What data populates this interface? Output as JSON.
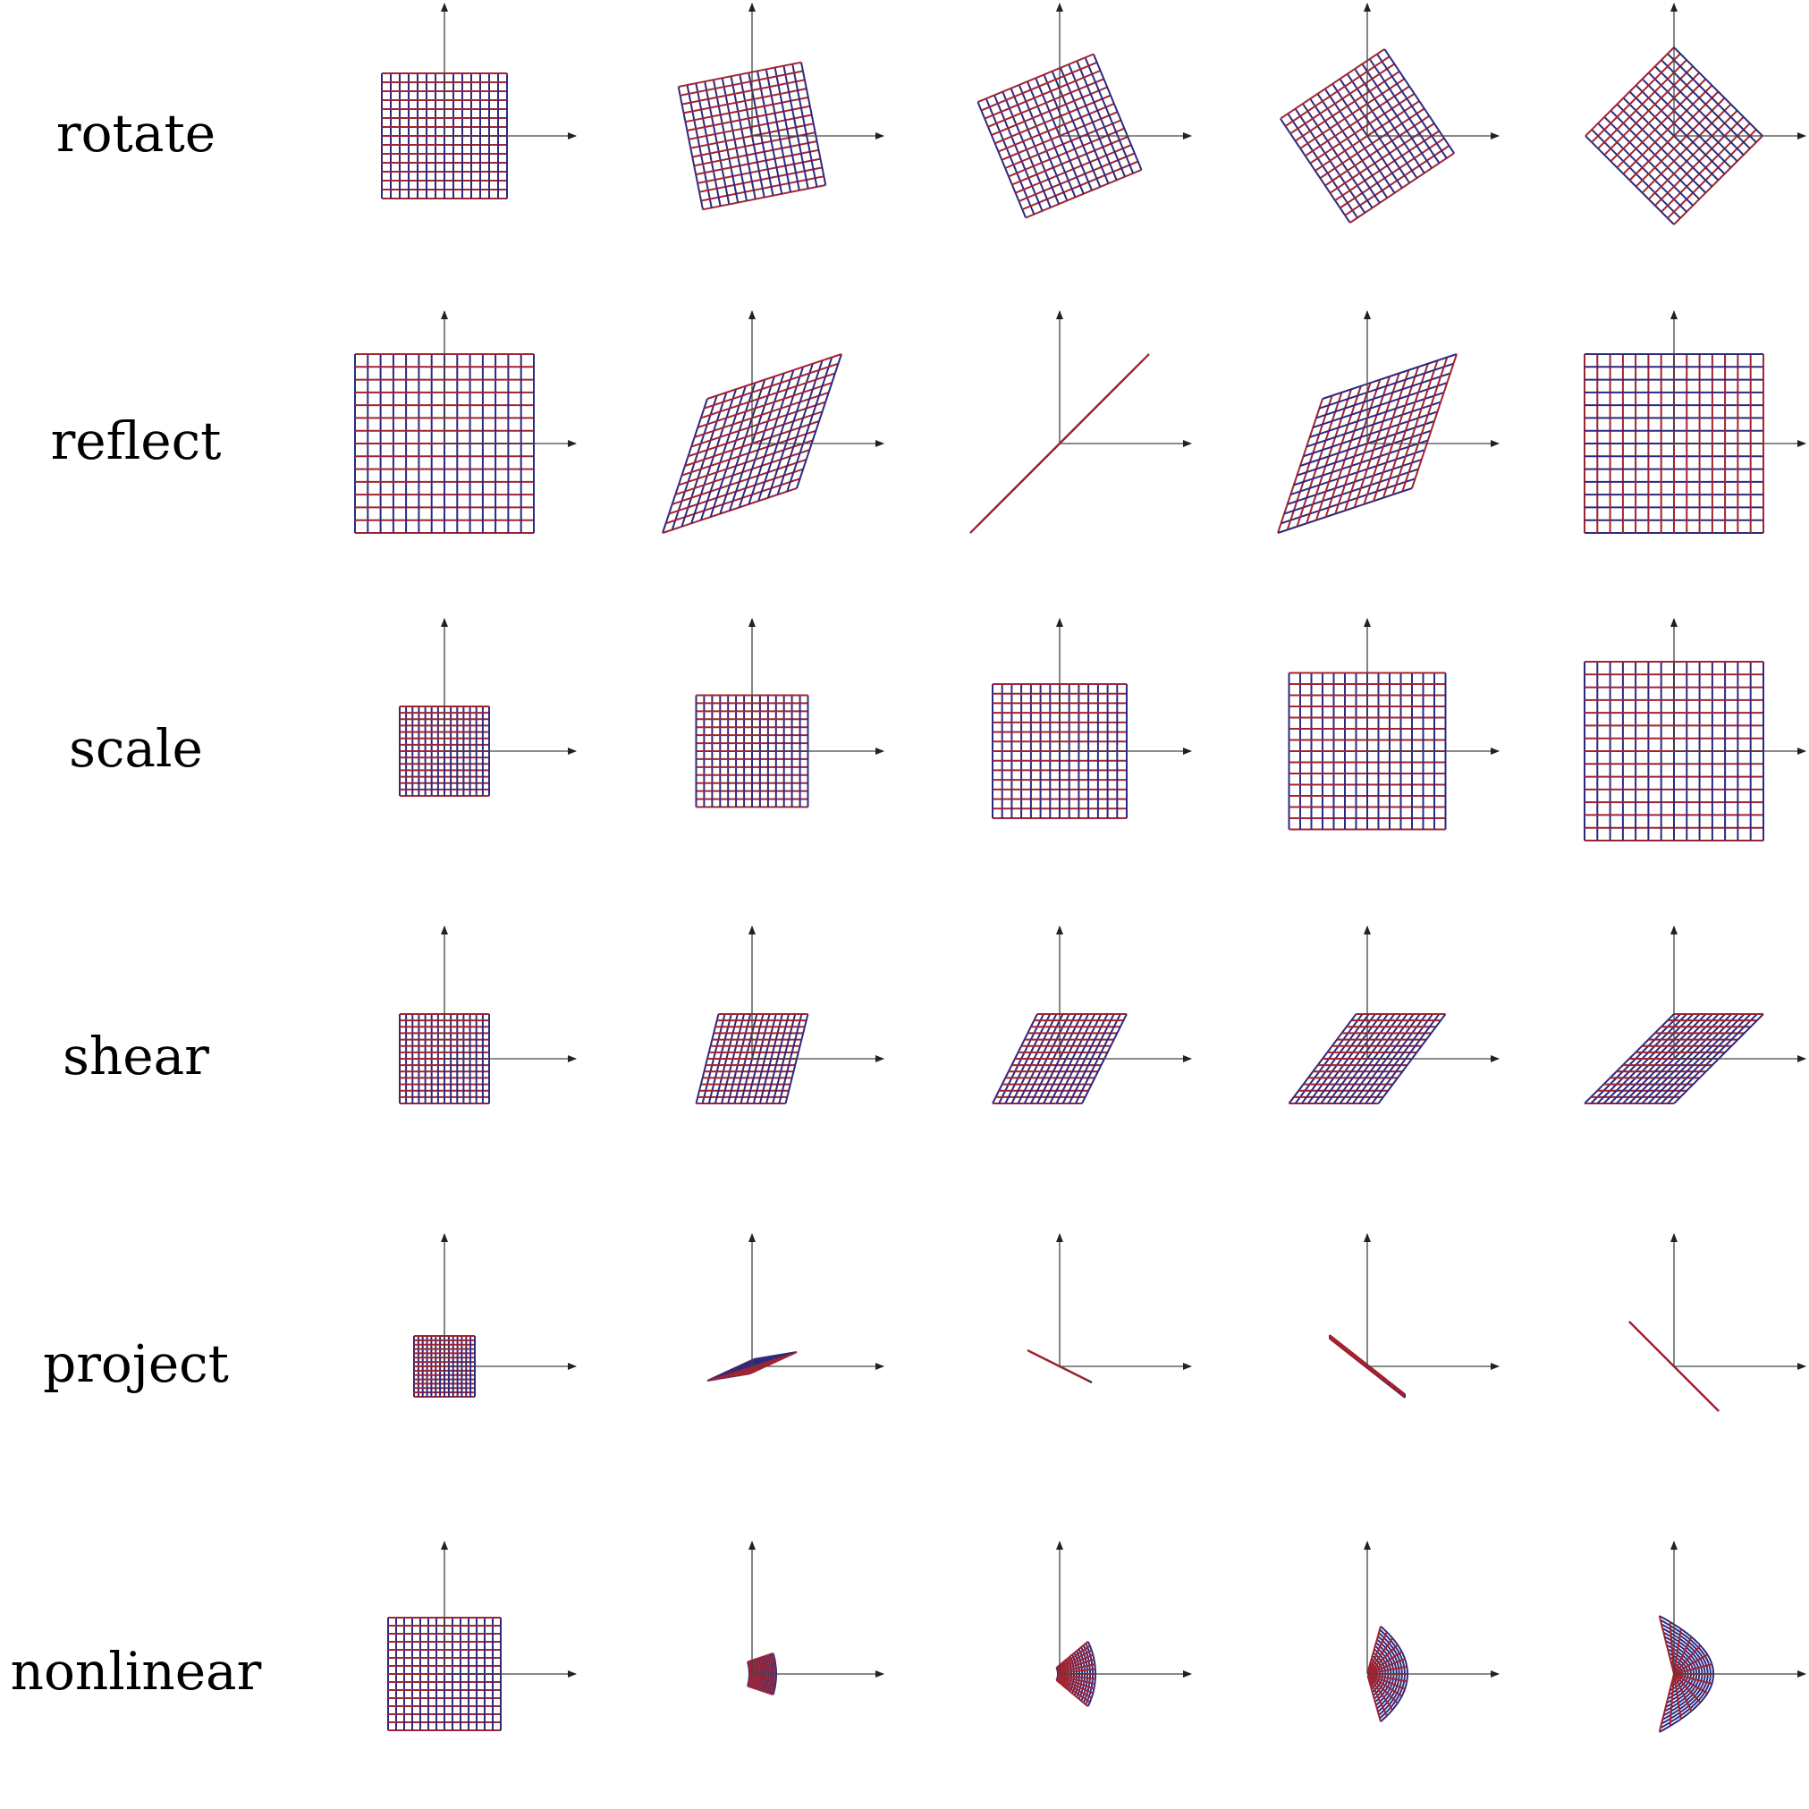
{
  "rows": [
    {
      "label": "rotate",
      "kind": "rotate",
      "stages": [
        0,
        0.25,
        0.5,
        0.75,
        1
      ]
    },
    {
      "label": "reflect",
      "kind": "reflect",
      "stages": [
        0,
        0.25,
        0.5,
        0.75,
        1
      ]
    },
    {
      "label": "scale",
      "kind": "scale",
      "stages": [
        0,
        0.25,
        0.5,
        0.75,
        1
      ]
    },
    {
      "label": "shear",
      "kind": "shear",
      "stages": [
        0,
        0.25,
        0.5,
        0.75,
        1
      ]
    },
    {
      "label": "project",
      "kind": "project",
      "stages": [
        0,
        0.25,
        0.5,
        0.75,
        1
      ]
    },
    {
      "label": "nonlinear",
      "kind": "nonlinear",
      "stages": [
        0,
        0.25,
        0.5,
        0.75,
        1
      ]
    }
  ],
  "colors": {
    "grid_red": "#a3232f",
    "grid_blue": "#2a2a80",
    "axis": "#444444",
    "text": "#000000"
  }
}
